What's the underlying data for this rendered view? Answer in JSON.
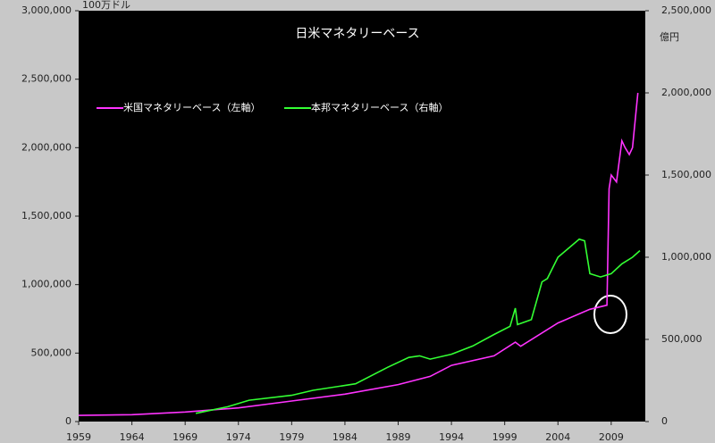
{
  "chart_data": {
    "type": "line",
    "title": "日米マネタリーベース",
    "y_label": "100万ドル",
    "y2_label": "億円",
    "xlim": [
      1959,
      2012.2
    ],
    "xticks": [
      1959,
      1964,
      1969,
      1974,
      1979,
      1984,
      1989,
      1994,
      1999,
      2004,
      2009
    ],
    "ylim": [
      0,
      3000000
    ],
    "yticks": [
      0,
      {
        "value": 500000,
        "label": "500,000"
      },
      {
        "value": 1000000,
        "label": "1,000,000"
      },
      {
        "value": 1500000,
        "label": "1,500,000"
      },
      {
        "value": 2000000,
        "label": "2,000,000"
      },
      {
        "value": 2500000,
        "label": "2,500,000"
      },
      {
        "value": 3000000,
        "label": "3,000,000"
      }
    ],
    "y2lim": [
      0,
      2500000
    ],
    "y2ticks": [
      0,
      {
        "value": 500000,
        "label": "500,000"
      },
      {
        "value": 1000000,
        "label": "1,000,000"
      },
      {
        "value": 1500000,
        "label": "1,500,000"
      },
      {
        "value": 2000000,
        "label": "2,000,000"
      },
      {
        "value": 2500000,
        "label": "2,500,000"
      }
    ],
    "legend": "upper left",
    "series": [
      {
        "name": "米国マネタリーベース（左軸）",
        "color": "#ff33ff",
        "x": [
          1959,
          1964,
          1969,
          1974,
          1979,
          1984,
          1989,
          1992,
          1994,
          1998,
          2000,
          2000.5,
          2004,
          2007,
          2008.6,
          2008.8,
          2009,
          2009.5,
          2010,
          2010.3,
          2010.7,
          2011,
          2011.5
        ],
        "values": [
          45000,
          50000,
          70000,
          100000,
          150000,
          200000,
          270000,
          330000,
          410000,
          480000,
          580000,
          550000,
          720000,
          820000,
          850000,
          1700000,
          1800000,
          1750000,
          2050000,
          2000000,
          1950000,
          2000000,
          2400000
        ]
      },
      {
        "name": "本邦マネタリーベース（右軸）",
        "color": "#33ff33",
        "axis": "y2",
        "x": [
          1970,
          1973,
          1975,
          1979,
          1981,
          1985,
          1988,
          1990,
          1991,
          1992,
          1994,
          1996,
          1998,
          1999.5,
          2000,
          2000.2,
          2001.5,
          2002.5,
          2003,
          2004,
          2006,
          2006.5,
          2007,
          2008,
          2009,
          2010,
          2011,
          2011.7
        ],
        "values": [
          50000,
          90000,
          130000,
          160000,
          190000,
          230000,
          330000,
          390000,
          400000,
          380000,
          410000,
          460000,
          530000,
          580000,
          690000,
          590000,
          620000,
          850000,
          870000,
          1000000,
          1110000,
          1100000,
          900000,
          880000,
          900000,
          960000,
          1000000,
          1040000
        ]
      }
    ]
  }
}
